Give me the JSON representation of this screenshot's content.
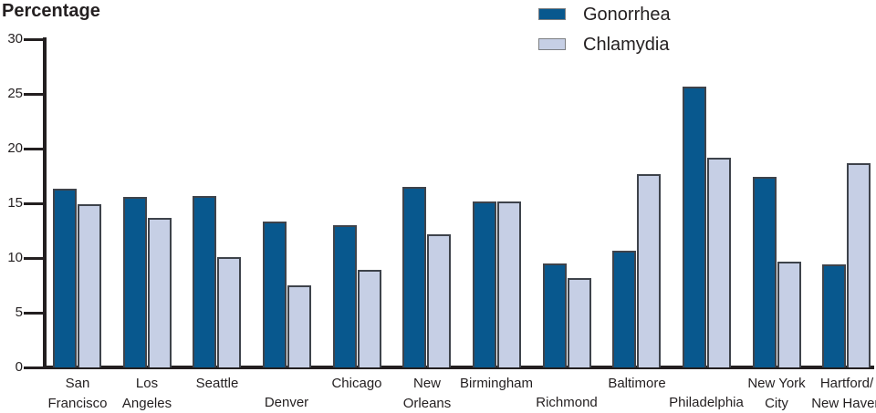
{
  "chart_data": {
    "type": "bar",
    "title": "Percentage",
    "ylabel": "Percentage",
    "xlabel": "",
    "ylim": [
      0,
      30
    ],
    "yticks": [
      0,
      5,
      10,
      15,
      20,
      25,
      30
    ],
    "grid": false,
    "legend_position": "top-right",
    "categories": [
      "San Francisco",
      "Los Angeles",
      "Seattle",
      "Denver",
      "Chicago",
      "New Orleans",
      "Birmingham",
      "Richmond",
      "Baltimore",
      "Philadelphia",
      "New York City",
      "Hartford/New Haven"
    ],
    "series": [
      {
        "name": "Gonorrhea",
        "color": "#08588e",
        "values": [
          16.3,
          15.6,
          15.7,
          13.3,
          13.0,
          16.5,
          15.2,
          9.5,
          10.7,
          25.7,
          17.4,
          9.4
        ]
      },
      {
        "name": "Chlamydia",
        "color": "#c6cfe5",
        "values": [
          14.9,
          13.7,
          10.1,
          7.5,
          8.9,
          12.2,
          15.2,
          8.2,
          17.7,
          19.2,
          9.7,
          18.7
        ]
      }
    ],
    "category_labels": [
      {
        "lines": [
          "San",
          "Francisco"
        ],
        "row": "both"
      },
      {
        "lines": [
          "Los",
          "Angeles"
        ],
        "row": "both"
      },
      {
        "lines": [
          "Seattle"
        ],
        "row": "top"
      },
      {
        "lines": [
          "Denver"
        ],
        "row": "bottom"
      },
      {
        "lines": [
          "Chicago"
        ],
        "row": "top"
      },
      {
        "lines": [
          "New",
          "Orleans"
        ],
        "row": "both"
      },
      {
        "lines": [
          "Birmingham"
        ],
        "row": "top"
      },
      {
        "lines": [
          "Richmond"
        ],
        "row": "bottom"
      },
      {
        "lines": [
          "Baltimore"
        ],
        "row": "top"
      },
      {
        "lines": [
          "Philadelphia"
        ],
        "row": "bottom"
      },
      {
        "lines": [
          "New York",
          "City"
        ],
        "row": "both"
      },
      {
        "lines": [
          "Hartford/",
          "New Haven"
        ],
        "row": "both"
      }
    ]
  },
  "colors": {
    "axis": "#231f20",
    "bar_border": "#3e434b",
    "background": "#ffffff"
  }
}
